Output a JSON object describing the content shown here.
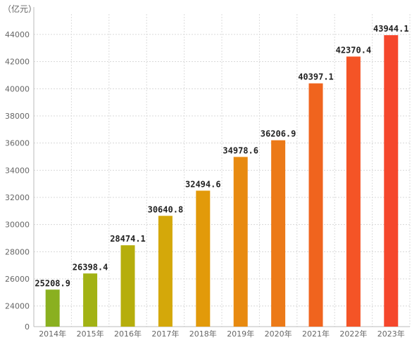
{
  "chart_data": {
    "type": "bar",
    "unit_label": "（亿元）",
    "categories": [
      "2014年",
      "2015年",
      "2016年",
      "2017年",
      "2018年",
      "2019年",
      "2020年",
      "2021年",
      "2022年",
      "2023年"
    ],
    "values": [
      25208.9,
      26398.4,
      28474.1,
      30640.8,
      32494.6,
      34978.6,
      36206.9,
      40397.1,
      42370.4,
      43944.1
    ],
    "value_labels": [
      "25208.9",
      "26398.4",
      "28474.1",
      "30640.8",
      "32494.6",
      "34978.6",
      "36206.9",
      "40397.1",
      "42370.4",
      "43944.1"
    ],
    "y_ticks": [
      "0",
      "24000",
      "26000",
      "28000",
      "30000",
      "32000",
      "34000",
      "36000",
      "38000",
      "40000",
      "42000",
      "44000"
    ],
    "ylim": [
      23000,
      45500
    ],
    "axis_break": true,
    "grid": true,
    "bar_colors": [
      "#8ab020",
      "#a2b214",
      "#b6ae0c",
      "#d4a80a",
      "#e29a0a",
      "#e88a10",
      "#ec7a18",
      "#f0641e",
      "#f45426",
      "#f5472c"
    ]
  }
}
